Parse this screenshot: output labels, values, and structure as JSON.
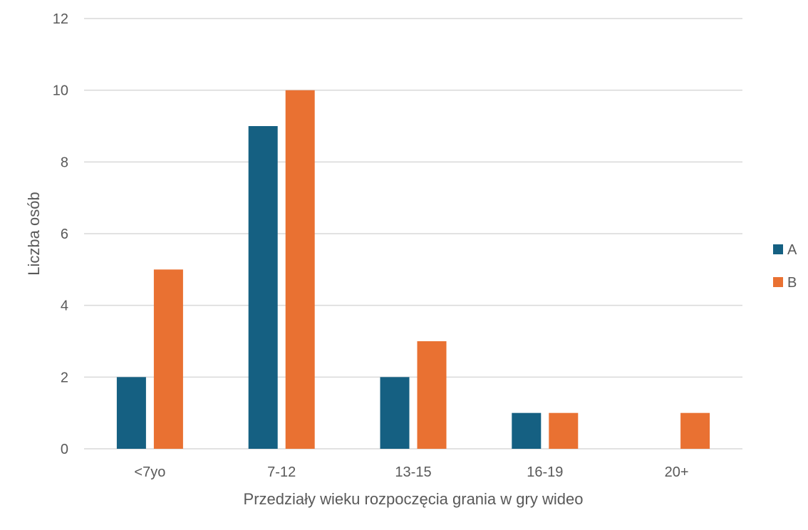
{
  "chart_data": {
    "type": "bar",
    "title": "",
    "xlabel": "Przedziały wieku rozpoczęcia grania w gry wideo",
    "ylabel": "Liczba osób",
    "categories": [
      "<7yo",
      "7-12",
      "13-15",
      "16-19",
      "20+"
    ],
    "series": [
      {
        "name": "A",
        "values": [
          2,
          9,
          2,
          1,
          0
        ],
        "color": "#156082"
      },
      {
        "name": "B",
        "values": [
          5,
          10,
          3,
          1,
          1
        ],
        "color": "#E97132"
      }
    ],
    "ylim": [
      0,
      12
    ],
    "yticks": [
      0,
      2,
      4,
      6,
      8,
      10,
      12
    ],
    "grid": true,
    "legend": "right",
    "colors": {
      "grid": "#D9D9D9",
      "text": "#595959"
    }
  }
}
